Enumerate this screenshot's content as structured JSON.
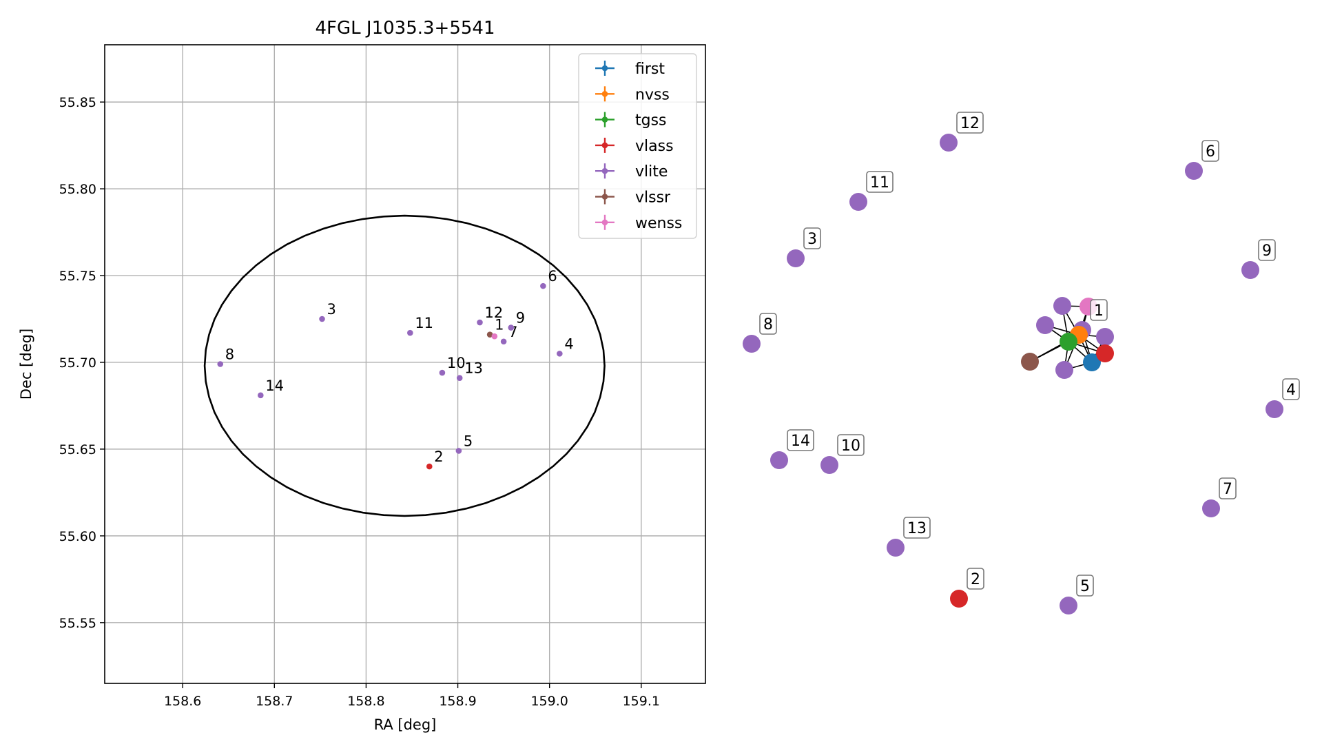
{
  "chart_data": [
    {
      "type": "scatter",
      "title": "4FGL J1035.3+5541",
      "xlabel": "RA [deg]",
      "ylabel": "Dec [deg]",
      "xlim": [
        158.515,
        159.17
      ],
      "ylim": [
        55.515,
        55.883
      ],
      "xticks": [
        158.6,
        158.7,
        158.8,
        158.9,
        159.0,
        159.1
      ],
      "yticks": [
        55.55,
        55.6,
        55.65,
        55.7,
        55.75,
        55.8,
        55.85
      ],
      "grid": true,
      "legend_position": "top-right",
      "ellipse": {
        "center": [
          158.842,
          55.698
        ],
        "semi_axis_ra": 0.218,
        "semi_axis_dec": 0.0865
      },
      "series": [
        {
          "name": "first",
          "color": "#1f77b4",
          "points": []
        },
        {
          "name": "nvss",
          "color": "#ff7f0e",
          "points": []
        },
        {
          "name": "tgss",
          "color": "#2ca02c",
          "points": []
        },
        {
          "name": "vlass",
          "color": "#d62728",
          "points": [
            {
              "label": "2",
              "x": 158.869,
              "y": 55.64
            }
          ]
        },
        {
          "name": "vlite",
          "color": "#9467bd",
          "points": [
            {
              "label": "3",
              "x": 158.752,
              "y": 55.725
            },
            {
              "label": "4",
              "x": 159.011,
              "y": 55.705
            },
            {
              "label": "5",
              "x": 158.901,
              "y": 55.649
            },
            {
              "label": "6",
              "x": 158.993,
              "y": 55.744
            },
            {
              "label": "7",
              "x": 158.95,
              "y": 55.712
            },
            {
              "label": "8",
              "x": 158.641,
              "y": 55.699
            },
            {
              "label": "9",
              "x": 158.958,
              "y": 55.72
            },
            {
              "label": "10",
              "x": 158.883,
              "y": 55.694
            },
            {
              "label": "11",
              "x": 158.848,
              "y": 55.717
            },
            {
              "label": "12",
              "x": 158.924,
              "y": 55.723
            },
            {
              "label": "13",
              "x": 158.902,
              "y": 55.691
            },
            {
              "label": "14",
              "x": 158.685,
              "y": 55.681
            }
          ]
        },
        {
          "name": "vlssr",
          "color": "#8c564b",
          "points": [
            {
              "label": "1",
              "x": 158.935,
              "y": 55.716
            }
          ]
        },
        {
          "name": "wenss",
          "color": "#e377c2",
          "points": [
            {
              "label": "",
              "x": 158.94,
              "y": 55.715
            }
          ]
        }
      ]
    },
    {
      "type": "network",
      "nodes": [
        {
          "label": "12",
          "color": "#9467bd"
        },
        {
          "label": "6",
          "color": "#9467bd"
        },
        {
          "label": "11",
          "color": "#9467bd"
        },
        {
          "label": "3",
          "color": "#9467bd"
        },
        {
          "label": "9",
          "color": "#9467bd"
        },
        {
          "label": "8",
          "color": "#9467bd"
        },
        {
          "label": "1",
          "color": "#9467bd"
        },
        {
          "label": "4",
          "color": "#9467bd"
        },
        {
          "label": "14",
          "color": "#9467bd"
        },
        {
          "label": "10",
          "color": "#9467bd"
        },
        {
          "label": "7",
          "color": "#9467bd"
        },
        {
          "label": "13",
          "color": "#9467bd"
        },
        {
          "label": "2",
          "color": "#d62728"
        },
        {
          "label": "5",
          "color": "#9467bd"
        },
        {
          "label": "",
          "color": "#9467bd"
        },
        {
          "label": "",
          "color": "#9467bd"
        },
        {
          "label": "",
          "color": "#9467bd"
        },
        {
          "label": "",
          "color": "#9467bd"
        },
        {
          "label": "",
          "color": "#e377c2"
        },
        {
          "label": "",
          "color": "#ff7f0e"
        },
        {
          "label": "",
          "color": "#2ca02c"
        },
        {
          "label": "",
          "color": "#1f77b4"
        },
        {
          "label": "",
          "color": "#d62728"
        },
        {
          "label": "",
          "color": "#8c564b"
        }
      ]
    }
  ]
}
